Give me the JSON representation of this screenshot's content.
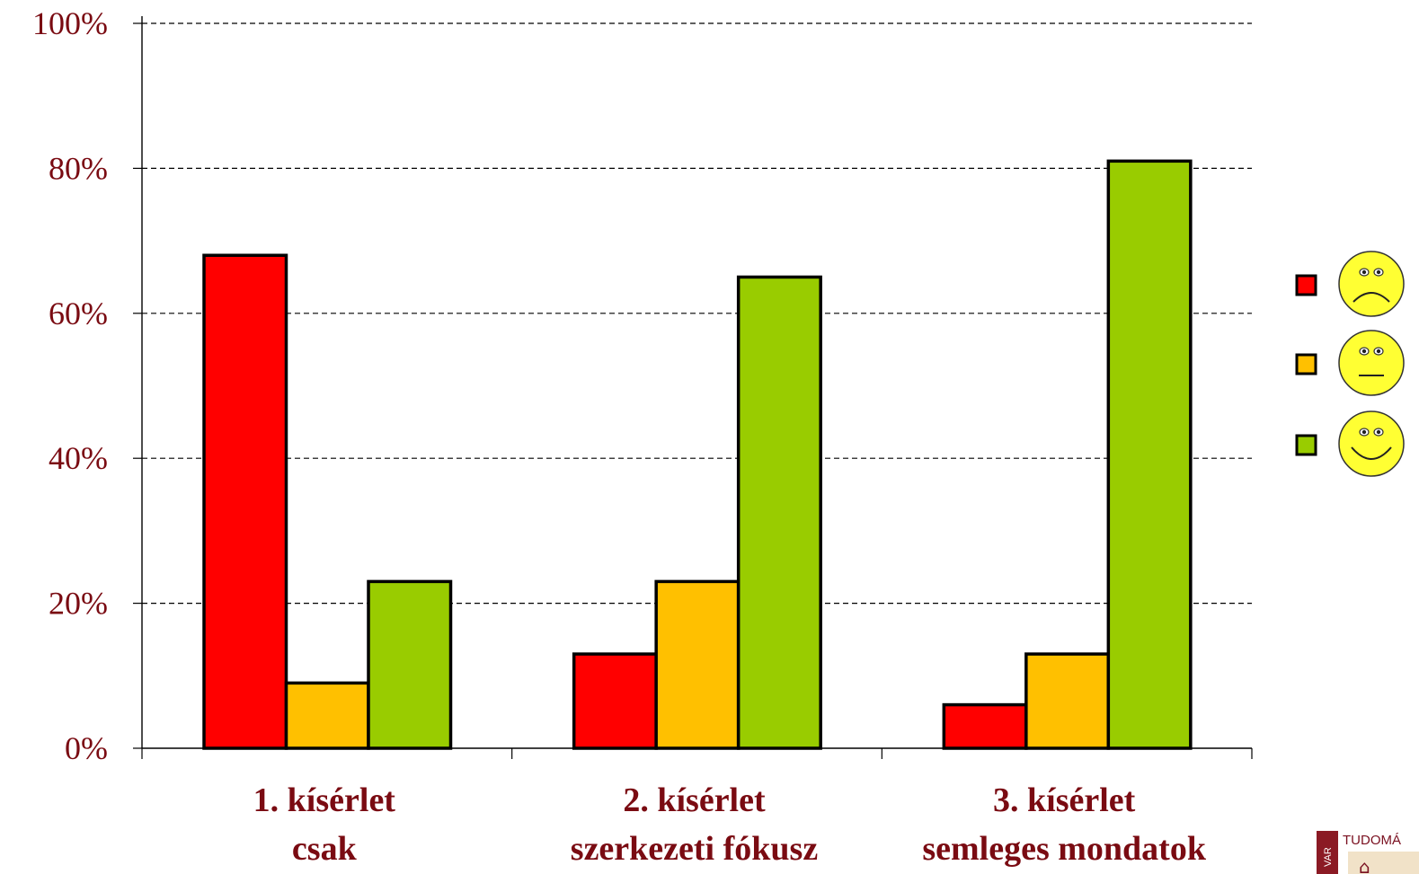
{
  "chart_data": {
    "type": "bar",
    "categories": [
      [
        "1. kísérlet",
        "csak"
      ],
      [
        "2. kísérlet",
        "szerkezeti fókusz"
      ],
      [
        "3. kísérlet",
        "semleges mondatok"
      ]
    ],
    "series": [
      {
        "legend_icon": "sad-face-icon",
        "color": "#ff0000",
        "values": [
          68,
          13,
          6
        ]
      },
      {
        "legend_icon": "neutral-face-icon",
        "color": "#ffc000",
        "values": [
          9,
          23,
          13
        ]
      },
      {
        "legend_icon": "happy-face-icon",
        "color": "#99cc00",
        "values": [
          23,
          65,
          81
        ]
      }
    ],
    "y_ticks": [
      "0%",
      "20%",
      "40%",
      "60%",
      "80%",
      "100%"
    ],
    "ylim": [
      0,
      100
    ],
    "grid": "dashed horizontal",
    "legend_position": "right",
    "text_color": "#7a0b12"
  },
  "logo": {
    "text": "TUDOMÁ",
    "side_text": "VAR"
  }
}
